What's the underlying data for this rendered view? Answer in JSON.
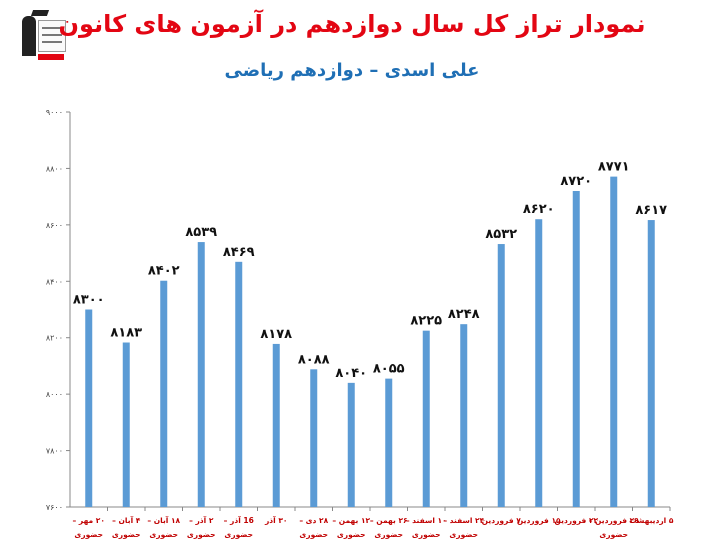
{
  "title": "نمودار تراز کل سال دوازدهم در آزمون های کانون",
  "subtitle": "علی اسدی – دوازدهم ریاضی",
  "colors": {
    "bar": "#5b9bd5",
    "title": "#e30613",
    "subtitle": "#1f6fb5",
    "ticklabel": "#c00000"
  },
  "chart_data": {
    "type": "bar",
    "title": "نمودار تراز کل سال دوازدهم در آزمون های کانون",
    "subtitle": "علی اسدی – دوازدهم ریاضی",
    "xlabel": "",
    "ylabel": "",
    "ylim": [
      7600,
      9000
    ],
    "yticks": [
      7600,
      7800,
      8000,
      8200,
      8400,
      8600,
      8800,
      9000
    ],
    "ytick_labels": [
      "۷۶۰۰",
      "۷۸۰۰",
      "۸۰۰۰",
      "۸۲۰۰",
      "۸۴۰۰",
      "۸۶۰۰",
      "۸۸۰۰",
      "۹۰۰۰"
    ],
    "grid": false,
    "categories": [
      "۲۰ مهر - حضوری",
      "۴ آبان - حضوری",
      "۱۸ آبان - حضوری",
      "۲ آذر - حضوری",
      "16 آذر - حضوری",
      "۳۰ آذر",
      "۲۸ دی - حضوری",
      "۱۲ بهمن - حضوری",
      "۲۶ بهمن - حضوری",
      "۱۰ اسفند - حضوری",
      "۲۴ اسفند - حضوری",
      "۷ فروردین",
      "۱۵ فروردین",
      "۲۲ فروردین",
      "۲۹ فروردین - حضوری",
      "۵ اردیبهشت"
    ],
    "values": [
      8300,
      8183,
      8402,
      8539,
      8469,
      8178,
      8088,
      8040,
      8055,
      8225,
      8248,
      8532,
      8620,
      8720,
      8771,
      8617
    ],
    "value_labels": [
      "۸۳۰۰",
      "۸۱۸۳",
      "۸۴۰۲",
      "۸۵۳۹",
      "۸۴۶۹",
      "۸۱۷۸",
      "۸۰۸۸",
      "۸۰۴۰",
      "۸۰۵۵",
      "۸۲۲۵",
      "۸۲۴۸",
      "۸۵۳۲",
      "۸۶۲۰",
      "۸۷۲۰",
      "۸۷۷۱",
      "۸۶۱۷"
    ]
  }
}
